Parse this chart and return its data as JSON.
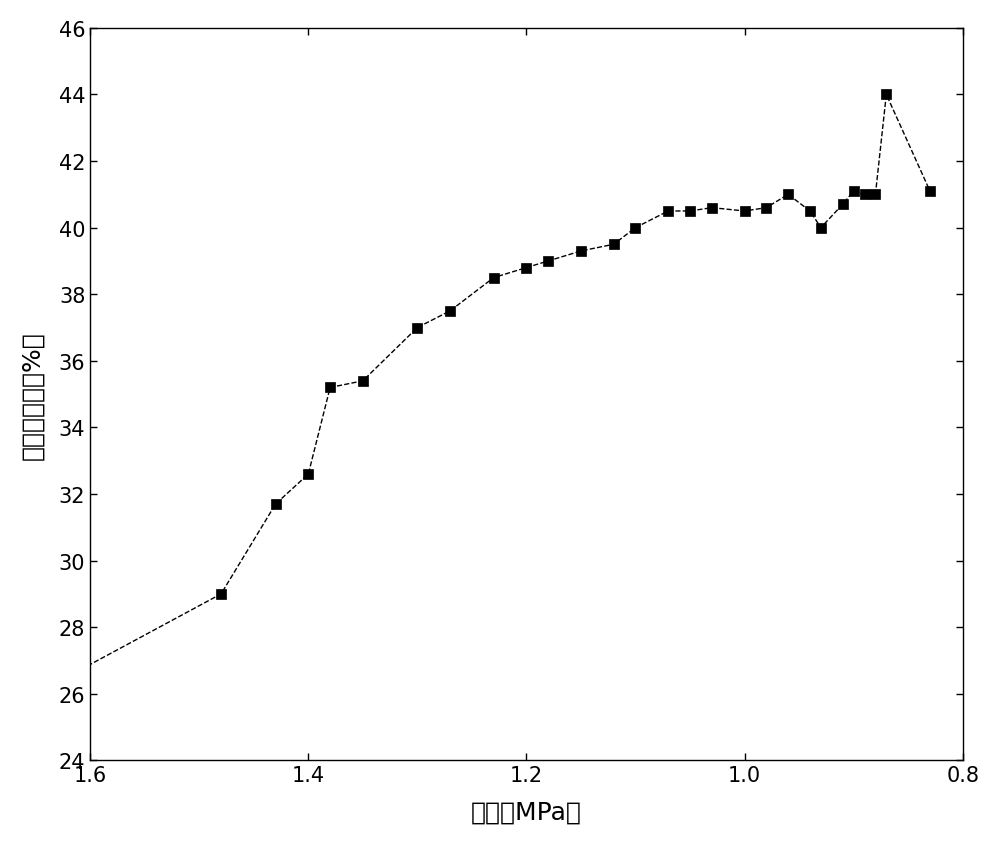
{
  "x": [
    1.65,
    1.48,
    1.43,
    1.4,
    1.38,
    1.35,
    1.3,
    1.27,
    1.23,
    1.2,
    1.18,
    1.15,
    1.12,
    1.1,
    1.07,
    1.05,
    1.03,
    1.0,
    0.98,
    0.96,
    0.94,
    0.93,
    0.91,
    0.9,
    0.89,
    0.88,
    0.87,
    0.83
  ],
  "y": [
    26.0,
    29.0,
    31.7,
    32.6,
    35.2,
    35.4,
    37.0,
    37.5,
    38.5,
    38.8,
    39.0,
    39.3,
    39.5,
    40.0,
    40.5,
    40.5,
    40.6,
    40.5,
    40.6,
    41.0,
    40.5,
    40.0,
    40.7,
    41.1,
    41.0,
    41.0,
    44.0,
    41.1
  ],
  "xlabel": "压力（MPa）",
  "ylabel": "含水饱和度（%）",
  "xlim_left": 1.6,
  "xlim_right": 0.8,
  "ylim": [
    24,
    46
  ],
  "xticks": [
    1.6,
    1.4,
    1.2,
    1.0,
    0.8
  ],
  "yticks": [
    24,
    26,
    28,
    30,
    32,
    34,
    36,
    38,
    40,
    42,
    44,
    46
  ],
  "marker": "s",
  "marker_size": 7,
  "line_color": "#000000",
  "marker_color": "#000000",
  "xlabel_fontsize": 18,
  "ylabel_fontsize": 18,
  "tick_fontsize": 15,
  "background_color": "#ffffff"
}
